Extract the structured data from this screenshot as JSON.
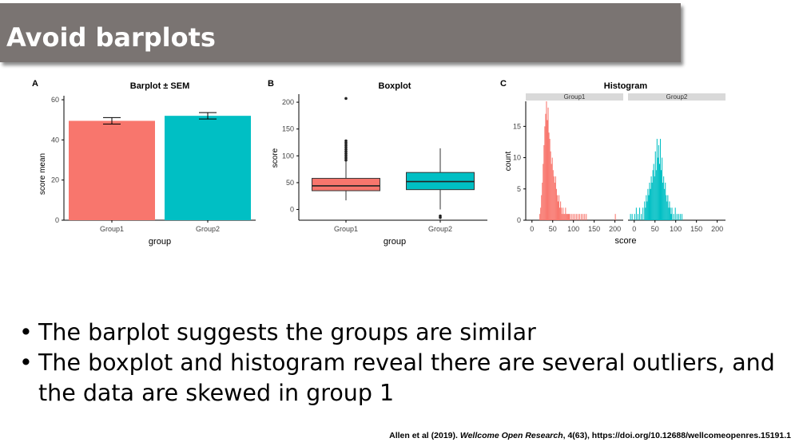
{
  "slide": {
    "title": "Avoid barplots",
    "bullets": [
      "The barplot suggests the groups are similar",
      "The boxplot and histogram reveal there are several outliers, and the data are skewed in group 1"
    ],
    "citation": {
      "authors": "Allen et al (2019).",
      "journal": "Wellcome Open Research",
      "rest": ", 4(63), https://doi.org/10.12688/wellcomeopenres.15191.1"
    }
  },
  "colors": {
    "group1": "#f8766d",
    "group2": "#00bfc4",
    "banner": "#7a7472",
    "strip": "#d9d9d9"
  },
  "chart_data": [
    {
      "type": "bar",
      "panel": "A",
      "title": "Barplot ± SEM",
      "xlabel": "group",
      "ylabel": "score mean",
      "categories": [
        "Group1",
        "Group2"
      ],
      "values": [
        49.5,
        52
      ],
      "error": [
        1.6,
        1.6
      ],
      "ylim": [
        0,
        62
      ],
      "yticks": [
        0,
        20,
        40,
        60
      ],
      "grid": false
    },
    {
      "type": "box",
      "panel": "B",
      "title": "Boxplot",
      "xlabel": "group",
      "ylabel": "score",
      "categories": [
        "Group1",
        "Group2"
      ],
      "boxes": [
        {
          "name": "Group1",
          "min": 17,
          "q1": 35,
          "median": 44,
          "q3": 58,
          "max": 90,
          "outliers": [
            92,
            96,
            100,
            104,
            108,
            112,
            116,
            120,
            124,
            128,
            207
          ]
        },
        {
          "name": "Group2",
          "min": 0,
          "q1": 37,
          "median": 52,
          "q3": 69,
          "max": 114,
          "outliers": [
            -12,
            -15
          ]
        }
      ],
      "ylim": [
        -20,
        215
      ],
      "yticks": [
        0,
        50,
        100,
        150,
        200
      ],
      "grid": false
    },
    {
      "type": "histogram",
      "panel": "C",
      "title": "Histogram",
      "xlabel": "score",
      "ylabel": "count",
      "facets": [
        "Group1",
        "Group2"
      ],
      "xlim": [
        -15,
        220
      ],
      "xticks": [
        0,
        50,
        100,
        150,
        200
      ],
      "ylim": [
        0,
        19
      ],
      "yticks": [
        0,
        5,
        10,
        15
      ],
      "binwidth": 2,
      "series": [
        {
          "name": "Group1",
          "bins": [
            [
              18,
              1
            ],
            [
              20,
              2
            ],
            [
              22,
              4
            ],
            [
              24,
              6
            ],
            [
              26,
              9
            ],
            [
              28,
              12
            ],
            [
              30,
              15
            ],
            [
              32,
              17
            ],
            [
              34,
              19
            ],
            [
              36,
              16
            ],
            [
              38,
              18
            ],
            [
              40,
              14
            ],
            [
              42,
              13
            ],
            [
              44,
              11
            ],
            [
              46,
              9
            ],
            [
              48,
              10
            ],
            [
              50,
              8
            ],
            [
              52,
              7
            ],
            [
              54,
              6
            ],
            [
              56,
              7
            ],
            [
              58,
              5
            ],
            [
              60,
              4
            ],
            [
              62,
              3
            ],
            [
              64,
              4
            ],
            [
              66,
              2
            ],
            [
              68,
              3
            ],
            [
              70,
              2
            ],
            [
              72,
              1
            ],
            [
              74,
              2
            ],
            [
              76,
              1
            ],
            [
              78,
              1
            ],
            [
              80,
              2
            ],
            [
              82,
              1
            ],
            [
              84,
              1
            ],
            [
              86,
              1
            ],
            [
              88,
              1
            ],
            [
              90,
              1
            ],
            [
              94,
              1
            ],
            [
              98,
              1
            ],
            [
              102,
              1
            ],
            [
              106,
              1
            ],
            [
              110,
              1
            ],
            [
              114,
              1
            ],
            [
              118,
              1
            ],
            [
              122,
              1
            ],
            [
              126,
              1
            ],
            [
              130,
              1
            ],
            [
              200,
              1
            ]
          ]
        },
        {
          "name": "Group2",
          "bins": [
            [
              -10,
              1
            ],
            [
              -6,
              1
            ],
            [
              0,
              1
            ],
            [
              4,
              2
            ],
            [
              8,
              1
            ],
            [
              12,
              2
            ],
            [
              16,
              1
            ],
            [
              20,
              2
            ],
            [
              24,
              3
            ],
            [
              26,
              2
            ],
            [
              28,
              4
            ],
            [
              30,
              3
            ],
            [
              32,
              5
            ],
            [
              34,
              4
            ],
            [
              36,
              6
            ],
            [
              38,
              5
            ],
            [
              40,
              7
            ],
            [
              42,
              6
            ],
            [
              44,
              8
            ],
            [
              46,
              9
            ],
            [
              48,
              7
            ],
            [
              50,
              11
            ],
            [
              52,
              8
            ],
            [
              54,
              13
            ],
            [
              56,
              10
            ],
            [
              58,
              12
            ],
            [
              60,
              9
            ],
            [
              62,
              13
            ],
            [
              64,
              8
            ],
            [
              66,
              10
            ],
            [
              68,
              6
            ],
            [
              70,
              7
            ],
            [
              72,
              5
            ],
            [
              74,
              6
            ],
            [
              76,
              4
            ],
            [
              78,
              3
            ],
            [
              80,
              4
            ],
            [
              82,
              2
            ],
            [
              84,
              3
            ],
            [
              86,
              2
            ],
            [
              88,
              1
            ],
            [
              90,
              2
            ],
            [
              94,
              1
            ],
            [
              98,
              2
            ],
            [
              102,
              1
            ],
            [
              106,
              1
            ],
            [
              110,
              1
            ],
            [
              114,
              1
            ]
          ]
        }
      ],
      "grid": false
    }
  ]
}
